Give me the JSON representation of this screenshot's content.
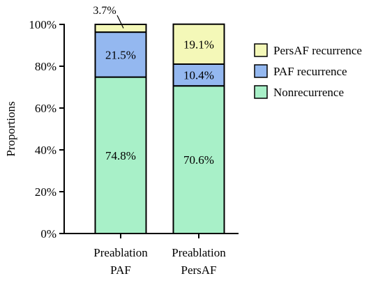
{
  "chart_data": {
    "type": "bar",
    "stacked": true,
    "ylabel": "Proportions",
    "ylim": [
      0,
      100
    ],
    "yticks": [
      0,
      20,
      40,
      60,
      80,
      100
    ],
    "ytick_labels": [
      "0%",
      "20%",
      "40%",
      "60%",
      "80%",
      "100%"
    ],
    "categories": [
      [
        "Preablation",
        "PAF"
      ],
      [
        "Preablation",
        "PersAF"
      ]
    ],
    "series": [
      {
        "name": "Nonrecurrence",
        "color": "#a8f0c8",
        "values": [
          74.8,
          70.6
        ],
        "labels": [
          "74.8%",
          "70.6%"
        ]
      },
      {
        "name": "PAF recurrence",
        "color": "#94b8f0",
        "values": [
          21.5,
          10.4
        ],
        "labels": [
          "21.5%",
          "10.4%"
        ]
      },
      {
        "name": "PersAF recurrence",
        "color": "#f4f8b8",
        "values": [
          3.7,
          19.1
        ],
        "labels": [
          "3.7%",
          "19.1%"
        ]
      }
    ],
    "legend_order": [
      "PersAF recurrence",
      "PAF recurrence",
      "Nonrecurrence"
    ],
    "legend_position": "right",
    "grid": false
  }
}
